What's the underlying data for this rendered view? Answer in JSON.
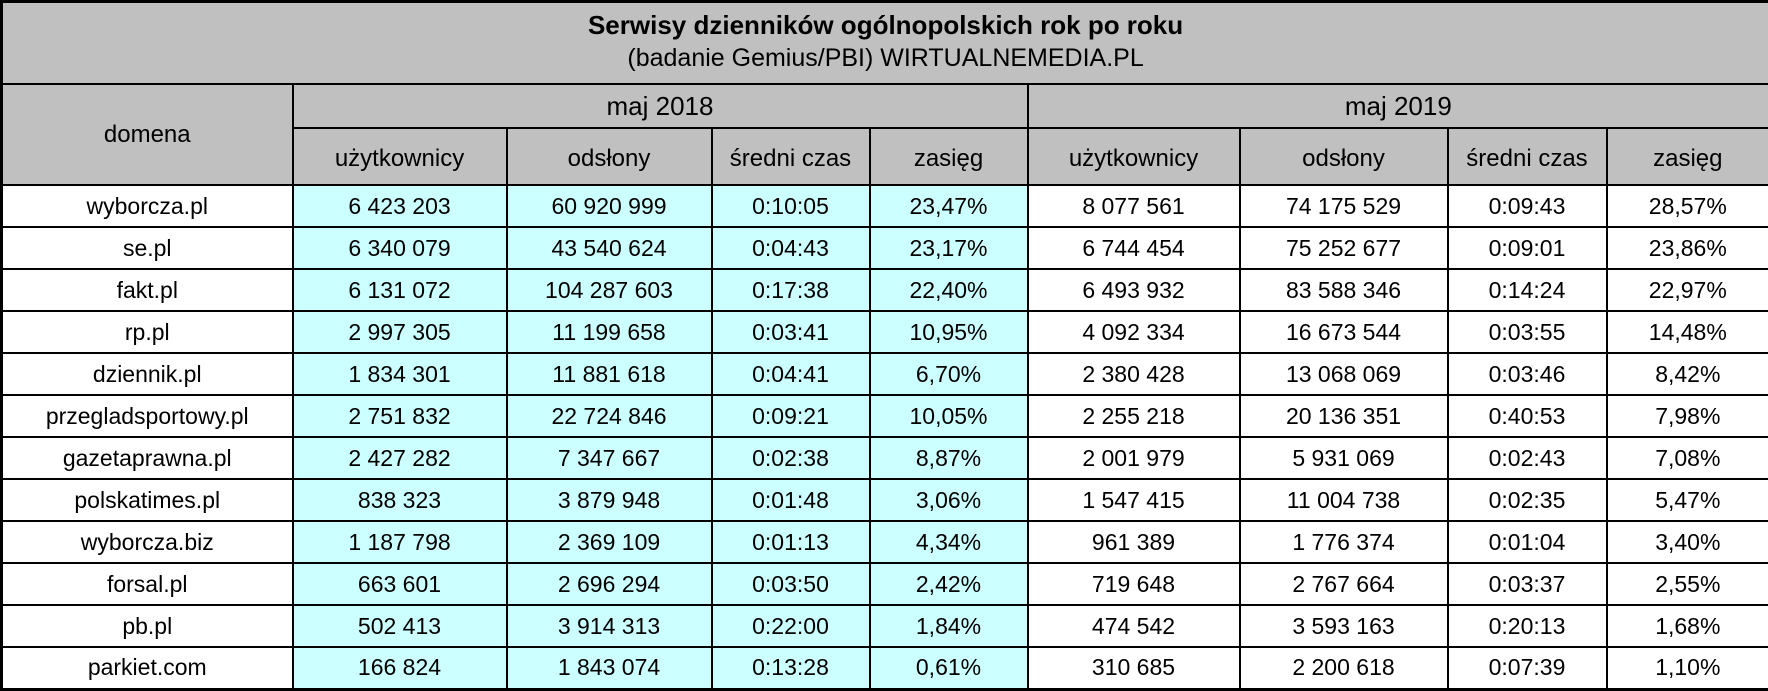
{
  "header": {
    "title": "Serwisy dzienników ogólnopolskich rok po roku",
    "subtitle": "(badanie Gemius/PBI) WIRTUALNEMEDIA.PL"
  },
  "table_header": {
    "domain_column": "domena",
    "group_2018": "maj 2018",
    "group_2019": "maj 2019",
    "metrics": [
      "użytkownicy",
      "odsłony",
      "średni czas",
      "zasięg"
    ]
  },
  "colors": {
    "header_bg": "#c0c0c0",
    "highlight_2018_bg": "#ccffff",
    "row_bg": "#ffffff",
    "border": "#000000"
  },
  "chart_data": {
    "type": "table",
    "title": "Serwisy dzienników ogólnopolskich rok po roku",
    "subtitle": "(badanie Gemius/PBI) WIRTUALNEMEDIA.PL",
    "column_groups": [
      "maj 2018",
      "maj 2019"
    ],
    "metrics": [
      "użytkownicy",
      "odsłony",
      "średni czas",
      "zasięg"
    ],
    "highlight_note": "maj 2018 metric columns have cyan background",
    "rows": [
      {
        "domena": "wyborcza.pl",
        "maj2018": [
          "6 423 203",
          "60 920 999",
          "0:10:05",
          "23,47%"
        ],
        "maj2019": [
          "8 077 561",
          "74 175 529",
          "0:09:43",
          "28,57%"
        ]
      },
      {
        "domena": "se.pl",
        "maj2018": [
          "6 340 079",
          "43 540 624",
          "0:04:43",
          "23,17%"
        ],
        "maj2019": [
          "6 744 454",
          "75 252 677",
          "0:09:01",
          "23,86%"
        ]
      },
      {
        "domena": "fakt.pl",
        "maj2018": [
          "6 131 072",
          "104 287 603",
          "0:17:38",
          "22,40%"
        ],
        "maj2019": [
          "6 493 932",
          "83 588 346",
          "0:14:24",
          "22,97%"
        ]
      },
      {
        "domena": "rp.pl",
        "maj2018": [
          "2 997 305",
          "11 199 658",
          "0:03:41",
          "10,95%"
        ],
        "maj2019": [
          "4 092 334",
          "16 673 544",
          "0:03:55",
          "14,48%"
        ]
      },
      {
        "domena": "dziennik.pl",
        "maj2018": [
          "1 834 301",
          "11 881 618",
          "0:04:41",
          "6,70%"
        ],
        "maj2019": [
          "2 380 428",
          "13 068 069",
          "0:03:46",
          "8,42%"
        ]
      },
      {
        "domena": "przegladsportowy.pl",
        "maj2018": [
          "2 751 832",
          "22 724 846",
          "0:09:21",
          "10,05%"
        ],
        "maj2019": [
          "2 255 218",
          "20 136 351",
          "0:40:53",
          "7,98%"
        ]
      },
      {
        "domena": "gazetaprawna.pl",
        "maj2018": [
          "2 427 282",
          "7 347 667",
          "0:02:38",
          "8,87%"
        ],
        "maj2019": [
          "2 001 979",
          "5 931 069",
          "0:02:43",
          "7,08%"
        ]
      },
      {
        "domena": "polskatimes.pl",
        "maj2018": [
          "838 323",
          "3 879 948",
          "0:01:48",
          "3,06%"
        ],
        "maj2019": [
          "1 547 415",
          "11 004 738",
          "0:02:35",
          "5,47%"
        ]
      },
      {
        "domena": "wyborcza.biz",
        "maj2018": [
          "1 187 798",
          "2 369 109",
          "0:01:13",
          "4,34%"
        ],
        "maj2019": [
          "961 389",
          "1 776 374",
          "0:01:04",
          "3,40%"
        ]
      },
      {
        "domena": "forsal.pl",
        "maj2018": [
          "663 601",
          "2 696 294",
          "0:03:50",
          "2,42%"
        ],
        "maj2019": [
          "719 648",
          "2 767 664",
          "0:03:37",
          "2,55%"
        ]
      },
      {
        "domena": "pb.pl",
        "maj2018": [
          "502 413",
          "3 914 313",
          "0:22:00",
          "1,84%"
        ],
        "maj2019": [
          "474 542",
          "3 593 163",
          "0:20:13",
          "1,68%"
        ]
      },
      {
        "domena": "parkiet.com",
        "maj2018": [
          "166 824",
          "1 843 074",
          "0:13:28",
          "0,61%"
        ],
        "maj2019": [
          "310 685",
          "2 200 618",
          "0:07:39",
          "1,10%"
        ]
      }
    ]
  }
}
